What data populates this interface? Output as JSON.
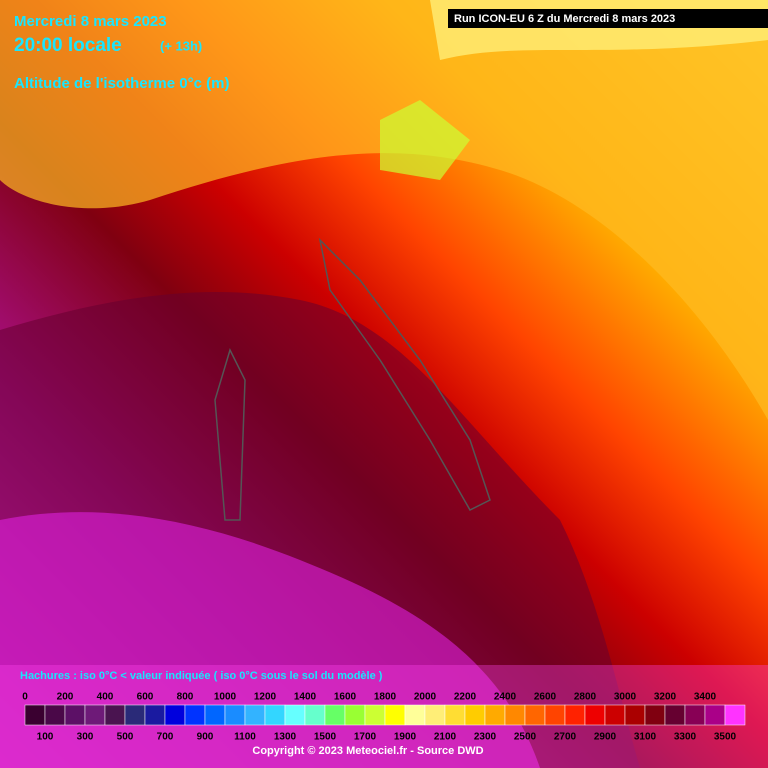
{
  "header": {
    "date": "Mercredi 8 mars 2023",
    "time": "20:00 locale",
    "offset": "(+ 13h)",
    "parameter": "Altitude de l'isotherme 0°c (m)",
    "run": "Run ICON-EU 6 Z du Mercredi 8 mars 2023"
  },
  "legend": {
    "note": "Hachures : iso 0°C < valeur indiquée ( iso 0°C sous le sol du modèle )",
    "levels": [
      0,
      100,
      200,
      300,
      400,
      500,
      600,
      700,
      800,
      900,
      1000,
      1100,
      1200,
      1300,
      1400,
      1500,
      1600,
      1700,
      1800,
      1900,
      2000,
      2100,
      2200,
      2300,
      2400,
      2500,
      2600,
      2700,
      2800,
      2900,
      3000,
      3100,
      3200,
      3300,
      3400,
      3500
    ],
    "colors": [
      "#3a0030",
      "#4a0848",
      "#5c1066",
      "#6e1a78",
      "#4a1450",
      "#2a2a78",
      "#1a1aa0",
      "#0000dd",
      "#0033ff",
      "#0066ff",
      "#1a8cff",
      "#33b3ff",
      "#33d6ff",
      "#66ffff",
      "#66ffcc",
      "#66ff66",
      "#99ff33",
      "#ccff33",
      "#ffff00",
      "#ffff99",
      "#ffee77",
      "#ffdd33",
      "#ffcc00",
      "#ffaa00",
      "#ff8800",
      "#ff6600",
      "#ff4400",
      "#ff2200",
      "#ee0000",
      "#cc0000",
      "#aa0000",
      "#800010",
      "#660030",
      "#880055",
      "#aa0088",
      "#ff33ff"
    ],
    "copyright": "Copyright © 2023 Meteociel.fr - Source DWD"
  }
}
